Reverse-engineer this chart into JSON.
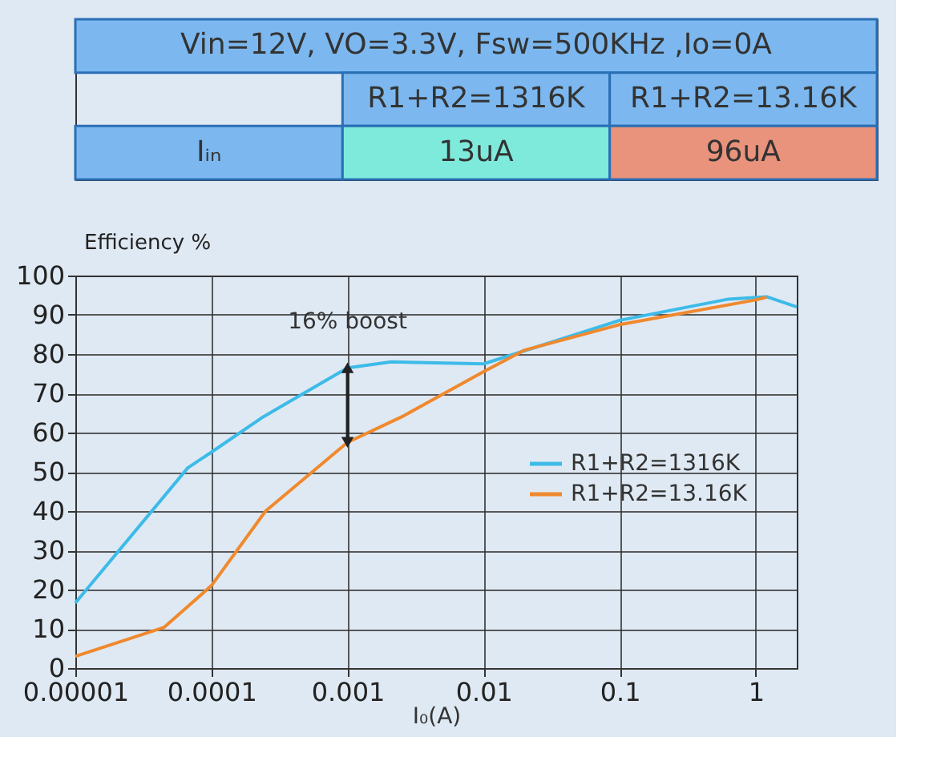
{
  "chart_data": [
    {
      "type": "other",
      "title": "Vin=12V, VO=3.3V, Fsw=500KHz ,Io=0A",
      "annotations": [
        "R1+R2=1316K",
        "R1+R2=13.16K",
        "Iᵢₙ",
        "13uA",
        "96uA"
      ]
    },
    {
      "type": "line",
      "ylabel": "Efficiency %",
      "xlabel": "I₀(A)",
      "log": "x",
      "xlim": [
        1e-05,
        2
      ],
      "xticks": [
        {
          "value": 1e-05,
          "label": "0.00001"
        },
        0.0001,
        0.001,
        0.01,
        0.1,
        1
      ],
      "ylim": [
        0,
        100
      ],
      "yticks": [
        0,
        10,
        20,
        30,
        40,
        50,
        60,
        70,
        80,
        90,
        100
      ],
      "grid": true,
      "legend": "right",
      "line_style": "solid",
      "marker": "none",
      "annotations": [
        {
          "text": "16% boost",
          "x": 0.001,
          "y": 80
        }
      ],
      "series": [
        {
          "name": "R1+R2=1316K",
          "color": "#3dbbe8",
          "x": [
            1e-05,
            6.7e-05,
            0.0001,
            0.00024,
            0.001,
            0.0021,
            0.01,
            0.1,
            0.63,
            1.2,
            2
          ],
          "values": [
            16.6,
            51,
            55,
            64,
            76.5,
            78,
            77.5,
            88.6,
            94,
            94.6,
            92
          ]
        },
        {
          "name": "R1+R2=13.16K",
          "color": "#f0892e",
          "x": [
            1e-05,
            4.5e-05,
            0.0001,
            0.00025,
            0.001,
            0.0025,
            0.01,
            0.02,
            0.1,
            1,
            1.2
          ],
          "values": [
            3,
            10.4,
            21,
            40,
            57.5,
            64,
            75.5,
            81,
            87.5,
            93.8,
            94.5
          ]
        }
      ]
    }
  ]
}
